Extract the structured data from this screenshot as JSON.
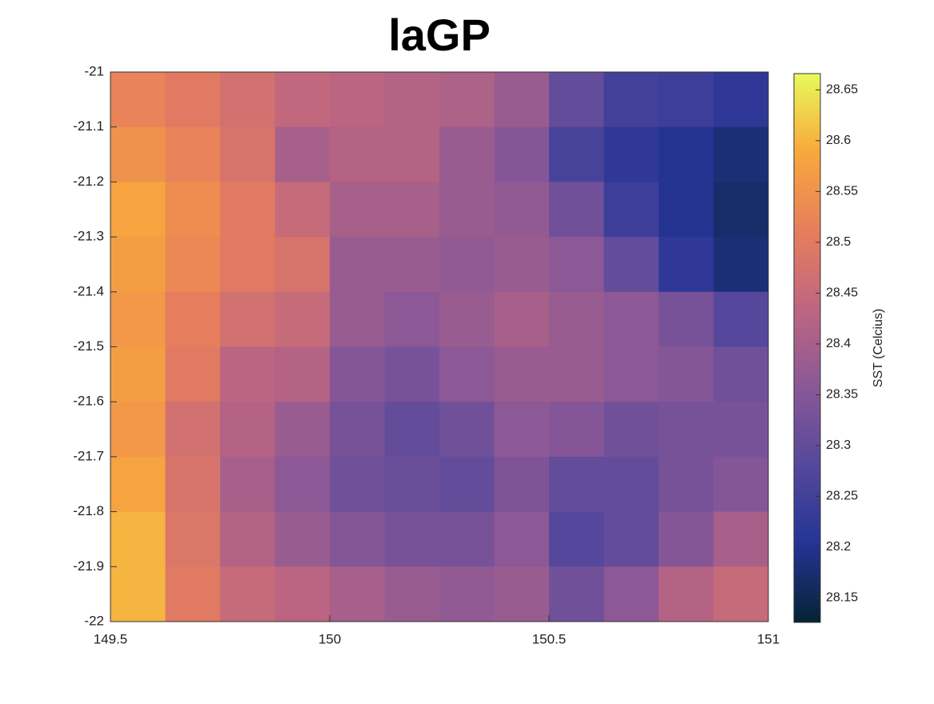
{
  "chart_data": {
    "type": "heatmap",
    "title": "laGP",
    "x": [
      149.5625,
      149.6875,
      149.8125,
      149.9375,
      150.0625,
      150.1875,
      150.3125,
      150.4375,
      150.5625,
      150.6875,
      150.8125,
      150.9375
    ],
    "y": [
      -21.05,
      -21.15,
      -21.25,
      -21.35,
      -21.45,
      -21.55,
      -21.65,
      -21.75,
      -21.85,
      -21.95
    ],
    "z": [
      [
        28.52,
        28.5,
        28.47,
        28.44,
        28.43,
        28.42,
        28.41,
        28.38,
        28.3,
        28.25,
        28.24,
        28.22
      ],
      [
        28.55,
        28.52,
        28.48,
        28.4,
        28.42,
        28.42,
        28.38,
        28.35,
        28.26,
        28.22,
        28.2,
        28.18
      ],
      [
        28.58,
        28.54,
        28.5,
        28.45,
        28.4,
        28.4,
        28.38,
        28.37,
        28.32,
        28.24,
        28.2,
        28.17
      ],
      [
        28.57,
        28.53,
        28.5,
        28.48,
        28.38,
        28.38,
        28.37,
        28.38,
        28.36,
        28.3,
        28.22,
        28.18
      ],
      [
        28.56,
        28.51,
        28.47,
        28.45,
        28.38,
        28.36,
        28.38,
        28.4,
        28.38,
        28.36,
        28.33,
        28.28
      ],
      [
        28.57,
        28.5,
        28.43,
        28.42,
        28.35,
        28.33,
        28.36,
        28.38,
        28.38,
        28.36,
        28.35,
        28.32
      ],
      [
        28.56,
        28.47,
        28.42,
        28.38,
        28.33,
        28.3,
        28.32,
        28.36,
        28.35,
        28.32,
        28.33,
        28.33
      ],
      [
        28.58,
        28.48,
        28.4,
        28.36,
        28.32,
        28.31,
        28.3,
        28.34,
        28.3,
        28.3,
        28.33,
        28.35
      ],
      [
        28.6,
        28.49,
        28.42,
        28.38,
        28.35,
        28.33,
        28.33,
        28.36,
        28.28,
        28.3,
        28.35,
        28.4
      ],
      [
        28.6,
        28.5,
        28.45,
        28.43,
        28.4,
        28.38,
        28.37,
        28.38,
        28.32,
        28.36,
        28.42,
        28.45
      ]
    ],
    "xlim": [
      149.5,
      151
    ],
    "xticks": [
      149.5,
      150,
      150.5,
      151
    ],
    "ylim": [
      -22,
      -21
    ],
    "yticks": [
      -21,
      -21.1,
      -21.2,
      -21.3,
      -21.4,
      -21.5,
      -21.6,
      -21.7,
      -21.8,
      -21.9,
      -22
    ],
    "clim": [
      28.126,
      28.666
    ],
    "cticks": [
      28.15,
      28.2,
      28.25,
      28.3,
      28.35,
      28.4,
      28.45,
      28.5,
      28.55,
      28.6,
      28.65
    ],
    "colorbar_label": "SST (Celcius)",
    "colormap": [
      "#042333",
      "#253494",
      "#55489c",
      "#8a5896",
      "#be6681",
      "#e77e5c",
      "#f8a83c",
      "#e8fa5b"
    ]
  }
}
